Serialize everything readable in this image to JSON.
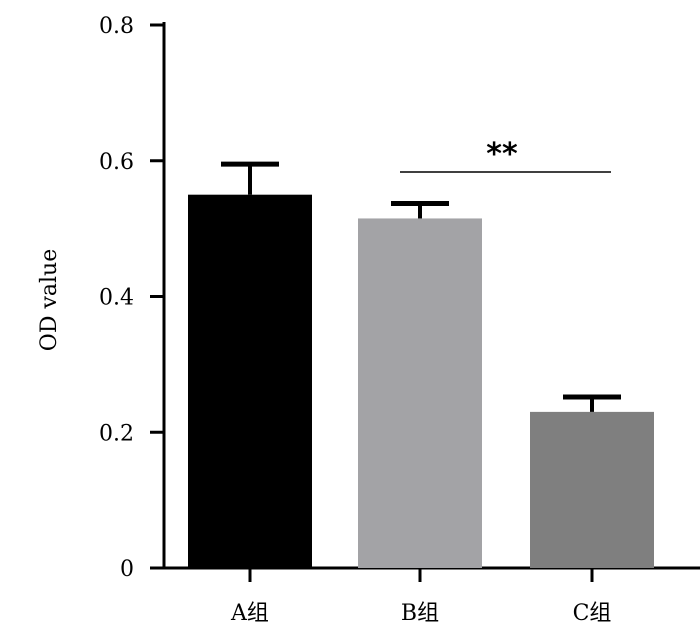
{
  "chart_data": {
    "type": "bar",
    "categories": [
      "A组",
      "B组",
      "C组"
    ],
    "values": [
      0.55,
      0.515,
      0.23
    ],
    "errors": [
      0.045,
      0.022,
      0.022
    ],
    "bar_colors": [
      "#000000",
      "#a3a3a6",
      "#7f7f7f"
    ],
    "ylabel": "OD value",
    "xlabel": "",
    "ylim": [
      0,
      0.8
    ],
    "yticks": [
      0,
      0.2,
      0.4,
      0.6,
      0.8
    ],
    "ytick_labels": [
      "0",
      "0.2",
      "0.4",
      "0.6",
      "0.8"
    ],
    "grid": false,
    "significance": {
      "between": [
        "B组",
        "C组"
      ],
      "label": "**"
    }
  }
}
